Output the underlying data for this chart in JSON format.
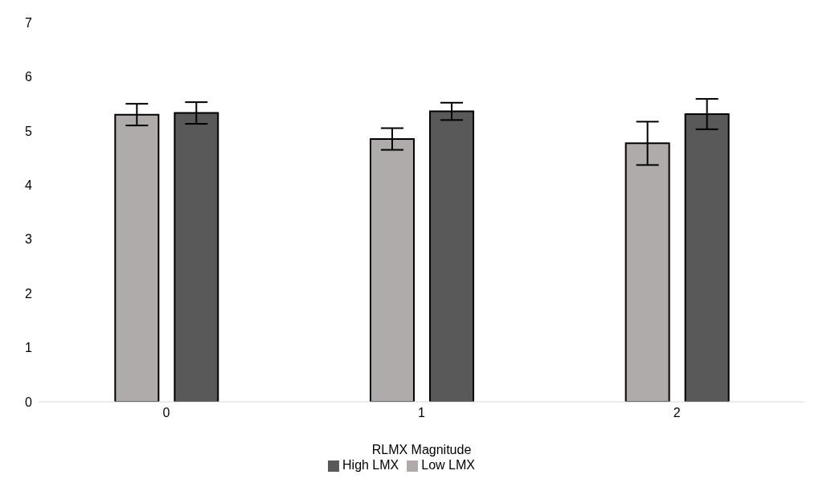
{
  "chart_data": {
    "type": "bar",
    "xlabel": "RLMX Magnitude",
    "categories": [
      "0",
      "1",
      "2"
    ],
    "series": [
      {
        "name": "Low LMX",
        "color": "#afabaa",
        "values": [
          5.3,
          4.85,
          4.77
        ],
        "errors": [
          0.2,
          0.2,
          0.4
        ]
      },
      {
        "name": "High LMX",
        "color": "#595959",
        "values": [
          5.33,
          5.36,
          5.31
        ],
        "errors": [
          0.2,
          0.16,
          0.28
        ]
      }
    ],
    "ylim": [
      0,
      7
    ],
    "yticks": [
      0,
      1,
      2,
      3,
      4,
      5,
      6,
      7
    ],
    "grid": false,
    "legend": "bottom"
  }
}
